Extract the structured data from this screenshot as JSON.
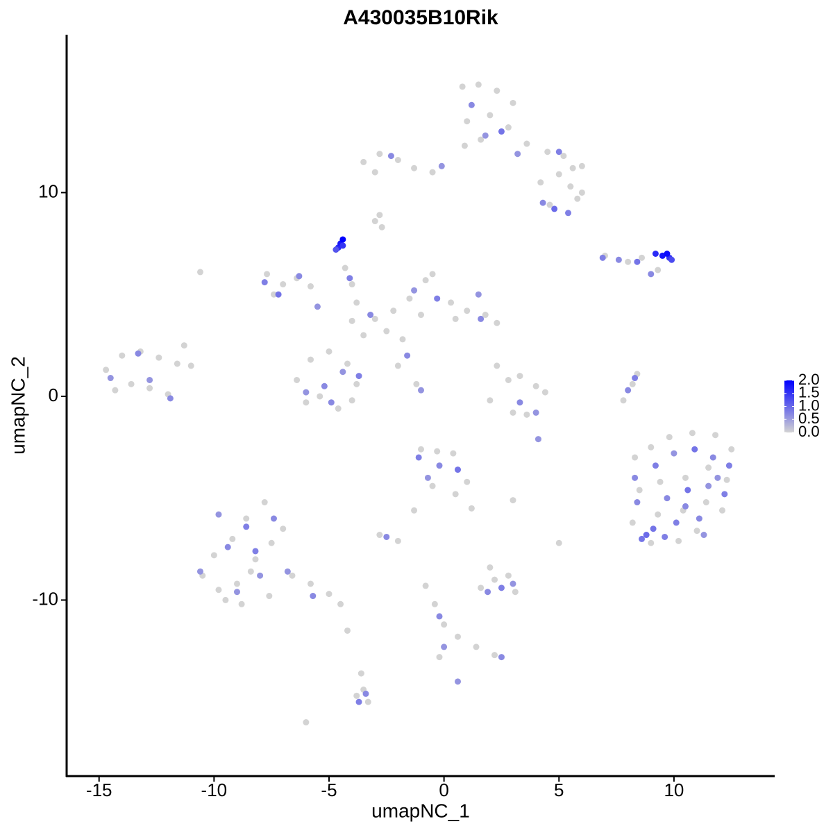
{
  "chart_data": {
    "type": "scatter",
    "title": "A430035B10Rik",
    "x_label": "umapNC_1",
    "y_label": "umapNC_2",
    "xlim": [
      -16.41,
      14.38
    ],
    "ylim": [
      -18.64,
      17.75
    ],
    "xticks": [
      -15,
      -10,
      -5,
      0,
      5,
      10
    ],
    "yticks": [
      -10,
      0,
      10
    ],
    "grid": false,
    "color_low": "#d3d3d3",
    "color_high": "#0000ff",
    "colorlim": [
      0,
      2
    ],
    "colorticks": [
      {
        "value": 0,
        "label": "0.0"
      },
      0.5,
      {
        "value": 1,
        "label": "1.0"
      },
      1.5,
      {
        "value": 2,
        "label": "2.0"
      }
    ],
    "x": [
      0.8,
      1.5,
      2.3,
      3.0,
      1.0,
      2.0,
      2.8,
      3.6,
      4.5,
      5.2,
      5.6,
      6.0,
      0.9,
      1.6,
      1.2,
      2.5,
      3.2,
      4.8,
      5.0,
      1.8,
      -3.5,
      -2.8,
      -2.0,
      -1.3,
      -0.5,
      -3.0,
      -2.3,
      -0.1,
      4.2,
      5.0,
      5.8,
      4.6,
      5.5,
      6.0,
      4.3,
      5.4,
      -3,
      -2.8,
      -2.7,
      -4.3,
      -4.0,
      -3.8,
      -4.1,
      -4.6,
      -4.5,
      -4.4,
      -4.7,
      -4.4,
      7.0,
      8.0,
      8.6,
      9.3,
      6.9,
      7.6,
      8.4,
      9.2,
      9.5,
      9.8,
      9.9,
      9.0,
      9.7,
      -7.7,
      -7.0,
      -6.4,
      -5.8,
      -7.4,
      -7.8,
      -7.2,
      -6.3,
      -5.5,
      -4.0,
      -3.0,
      -2.2,
      -1.5,
      -0.8,
      -0.5,
      0.3,
      1.0,
      1.8,
      2.3,
      -2.5,
      -1.0,
      0.5,
      -3.5,
      -1.8,
      -3.2,
      -1.3,
      -0.3,
      1.6,
      1.5,
      -1.6,
      -2.0,
      -1.2,
      -1.0,
      -6.4,
      -5.8,
      -5.0,
      -4.2,
      -3.8,
      -5.4,
      -4.6,
      -6.0,
      -4.0,
      -5.2,
      -4.4,
      -3.7,
      -6.0,
      -4.9,
      -14.7,
      -14.0,
      -13.2,
      -12.4,
      -11.6,
      -11.0,
      -13.6,
      -12.8,
      -12.0,
      -11.3,
      -14.3,
      -14.5,
      -13.3,
      -12.8,
      -11.9,
      2.3,
      2.8,
      3.3,
      4.0,
      4.4,
      3.0,
      2.0,
      3.6,
      3.3,
      4.0,
      7.8,
      8.2,
      8.4,
      8.0,
      8.3,
      8.3,
      9.0,
      9.8,
      10.8,
      11.8,
      12.5,
      8.5,
      9.4,
      10.5,
      11.5,
      12.3,
      8.2,
      9.3,
      10.4,
      11.4,
      12.1,
      9.0,
      10.2,
      11.0,
      8.4,
      9.2,
      10.0,
      10.9,
      11.7,
      12.4,
      8.8,
      9.7,
      10.6,
      11.5,
      12.2,
      8.3,
      9.1,
      10.1,
      11.1,
      11.9,
      8.6,
      9.6,
      10.5,
      11.3,
      -1.0,
      -0.3,
      0.4,
      1.0,
      -0.5,
      0.5,
      1.2,
      -1.1,
      -0.2,
      0.6,
      -0.7,
      -2.8,
      -2.0,
      -1.3,
      -2.5,
      -10.5,
      -9.8,
      -9.0,
      -8.2,
      -7.5,
      -8.6,
      -7.8,
      -10.0,
      -9.2,
      -8.4,
      -7.6,
      -6.6,
      -5.8,
      -5.0,
      -4.5,
      -8.8,
      -9.5,
      -7.0,
      -10.6,
      -9.4,
      -8.6,
      -8.0,
      -7.4,
      -9.0,
      -8.2,
      -6.8,
      -5.7,
      -9.8,
      -4.2,
      -3.6,
      -3.5,
      -3.3,
      -3.8,
      -3.4,
      -3.7,
      1.6,
      2.2,
      2.8,
      3.1,
      2.0,
      1.9,
      2.5,
      3.0,
      -0.8,
      -0.4,
      0.0,
      0.6,
      1.4,
      2.2,
      -0.2,
      -0.2,
      0.0,
      2.5,
      5.0,
      3.0,
      -6.0,
      -10.6,
      4.1,
      0.6
    ],
    "y": [
      15.2,
      15.3,
      15.0,
      14.4,
      13.5,
      13.8,
      13.2,
      12.4,
      12.0,
      11.8,
      11.2,
      10.0,
      12.3,
      12.6,
      14.3,
      13.0,
      11.9,
      9.2,
      12.0,
      12.8,
      11.5,
      11.9,
      11.6,
      11.2,
      11.0,
      11.0,
      11.8,
      11.3,
      10.5,
      10.9,
      9.7,
      9.4,
      10.3,
      11.3,
      9.5,
      9.0,
      8.6,
      8.9,
      8.3,
      6.3,
      5.5,
      4.6,
      5.8,
      7.3,
      7.5,
      7.7,
      7.2,
      7.4,
      6.9,
      6.6,
      6.8,
      6.2,
      6.8,
      6.7,
      6.6,
      7.0,
      6.9,
      6.8,
      6.7,
      6.0,
      7.0,
      6.0,
      5.5,
      5.8,
      5.4,
      5.0,
      5.6,
      5.0,
      5.9,
      4.4,
      3.7,
      3.8,
      4.2,
      4.8,
      5.7,
      6.0,
      4.6,
      4.2,
      4.0,
      3.6,
      3.2,
      4.0,
      3.8,
      3.0,
      2.8,
      4.0,
      5.2,
      4.8,
      3.8,
      5.0,
      2.0,
      1.5,
      0.6,
      0.3,
      0.8,
      1.8,
      2.2,
      1.6,
      0.6,
      0.0,
      -0.6,
      -0.3,
      -0.2,
      0.5,
      1.2,
      1.0,
      0.2,
      -0.3,
      1.3,
      2.0,
      2.2,
      1.9,
      1.6,
      1.5,
      0.6,
      0.4,
      0.1,
      2.5,
      0.3,
      0.9,
      2.1,
      0.8,
      -0.1,
      1.5,
      0.8,
      1.0,
      0.5,
      0.2,
      -0.8,
      -0.2,
      -0.9,
      -0.3,
      -0.8,
      -0.2,
      0.6,
      1.1,
      0.3,
      0.9,
      -3.0,
      -2.5,
      -2.0,
      -1.8,
      -1.9,
      -2.6,
      -4.6,
      -4.2,
      -4.0,
      -3.5,
      -4.1,
      -6.2,
      -5.8,
      -5.6,
      -5.2,
      -5.6,
      -7.2,
      -7.1,
      -6.6,
      -5.2,
      -3.4,
      -2.8,
      -2.6,
      -3.0,
      -3.4,
      -6.8,
      -5.0,
      -4.6,
      -4.4,
      -4.8,
      -4.0,
      -6.5,
      -6.2,
      -6.0,
      -4.0,
      -7.0,
      -6.9,
      -5.4,
      -6.8,
      -2.6,
      -2.7,
      -2.8,
      -4.2,
      -4.4,
      -4.8,
      -5.5,
      -3.0,
      -3.4,
      -3.6,
      -4.0,
      -6.8,
      -7.1,
      -5.6,
      -6.9,
      -8.8,
      -9.5,
      -9.2,
      -8.0,
      -7.2,
      -6.0,
      -5.2,
      -7.8,
      -7.0,
      -8.6,
      -9.8,
      -8.8,
      -9.2,
      -9.7,
      -10.2,
      -10.2,
      -10.0,
      -6.5,
      -8.6,
      -7.4,
      -6.4,
      -8.8,
      -6.0,
      -9.6,
      -7.6,
      -8.6,
      -9.8,
      -5.8,
      -11.5,
      -13.6,
      -14.4,
      -15.0,
      -14.7,
      -14.6,
      -15.0,
      -9.4,
      -9.0,
      -8.8,
      -9.6,
      -8.4,
      -9.6,
      -9.4,
      -9.2,
      -9.3,
      -10.2,
      -11.2,
      -11.8,
      -12.3,
      -12.7,
      -12.8,
      -10.8,
      -12.3,
      -12.8,
      -7.2,
      -5.1,
      -16.0,
      6.1,
      -2.1,
      -14.0
    ],
    "values": [
      0,
      0,
      0,
      0,
      0,
      0,
      0,
      0,
      0,
      0,
      0,
      0,
      0,
      0,
      0.7,
      0.9,
      0.6,
      1.0,
      0.8,
      0.6,
      0,
      0,
      0,
      0,
      0,
      0,
      0.7,
      0.6,
      0,
      0,
      0,
      0,
      0,
      0,
      0.7,
      0.8,
      0,
      0,
      0,
      0,
      0,
      0,
      0.8,
      1.6,
      1.8,
      2.0,
      1.2,
      1.5,
      0,
      0,
      0,
      0,
      0.8,
      0.7,
      0.9,
      1.6,
      1.8,
      1.5,
      1.3,
      0.7,
      1.9,
      0,
      0,
      0,
      0,
      0,
      0.8,
      0.9,
      0.7,
      0.6,
      0,
      0,
      0,
      0,
      0,
      0,
      0,
      0,
      0,
      0,
      0,
      0,
      0,
      0,
      0,
      0.7,
      0.6,
      0.8,
      0.7,
      0.6,
      0.7,
      0,
      0,
      0.6,
      0,
      0,
      0,
      0,
      0,
      0,
      0,
      0,
      0,
      0.7,
      0.6,
      0.8,
      0.6,
      0.7,
      0,
      0,
      0,
      0,
      0,
      0,
      0,
      0,
      0,
      0,
      0,
      0.6,
      0.7,
      0.6,
      0.7,
      0,
      0,
      0,
      0,
      0,
      0,
      0,
      0,
      0.7,
      0.6,
      0,
      0,
      0,
      0.7,
      0.8,
      0,
      0,
      0,
      0,
      0,
      0,
      0,
      0,
      0,
      0,
      0,
      0,
      0,
      0,
      0,
      0,
      0,
      0,
      0,
      0.7,
      0.8,
      0.6,
      0.9,
      0.7,
      0.8,
      1.0,
      0.7,
      0.9,
      0.6,
      0.8,
      0.7,
      0.9,
      0.8,
      0.7,
      0.6,
      0.9,
      0.8,
      0.7,
      0.6,
      0,
      0,
      0,
      0,
      0,
      0,
      0,
      0.8,
      0.7,
      0.9,
      0.6,
      0,
      0,
      0,
      0.7,
      0,
      0,
      0,
      0,
      0,
      0,
      0,
      0,
      0,
      0,
      0,
      0,
      0,
      0,
      0,
      0,
      0,
      0,
      0.6,
      0.7,
      0.8,
      0.6,
      0.7,
      0.6,
      0.8,
      0.6,
      0.7,
      0.6,
      0,
      0,
      0,
      0,
      0,
      0.7,
      0.8,
      0,
      0,
      0,
      0,
      0,
      0.7,
      0.8,
      0.6,
      0,
      0,
      0,
      0,
      0,
      0,
      0,
      0.7,
      0.6,
      0.7,
      0,
      0,
      0,
      0,
      0.6,
      0.6
    ]
  }
}
